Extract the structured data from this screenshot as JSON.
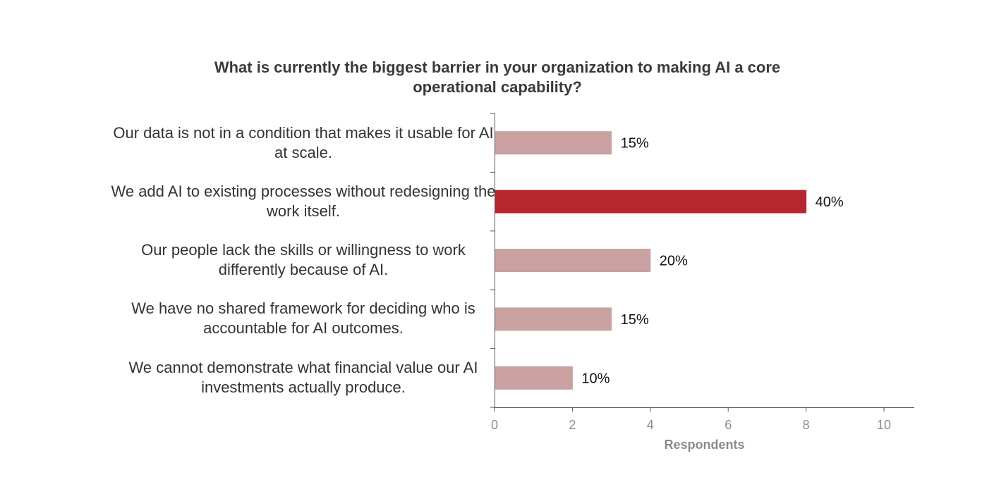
{
  "chart_data": {
    "type": "bar",
    "orientation": "horizontal",
    "title_lines": [
      "What is currently the biggest barrier in your organization to making AI a core",
      "operational capability?"
    ],
    "categories": [
      {
        "lines": [
          "Our data is not in a condition that makes it usable for AI",
          "at scale."
        ]
      },
      {
        "lines": [
          "We add AI to existing processes without redesigning the",
          "work itself."
        ]
      },
      {
        "lines": [
          "Our people lack the skills or willingness to work",
          "differently because of AI."
        ]
      },
      {
        "lines": [
          "We have no shared framework for deciding who is",
          "accountable for AI outcomes."
        ]
      },
      {
        "lines": [
          "We cannot demonstrate what financial value our AI",
          "investments actually produce."
        ]
      }
    ],
    "values": [
      3,
      8,
      4,
      3,
      2
    ],
    "data_labels": [
      "15%",
      "40%",
      "20%",
      "15%",
      "10%"
    ],
    "xlabel": "Respondents",
    "xlim": [
      0,
      10.8
    ],
    "xticks": [
      0,
      2,
      4,
      6,
      8,
      10
    ],
    "highlight_index": 1,
    "colors": {
      "bar": "#c9a1a1",
      "highlight": "#b5262f",
      "axis": "#555555",
      "tick_label": "#8c8c8c",
      "axis_title": "#8c8c8c",
      "data_label": "#111111"
    },
    "grid": false,
    "legend": "none"
  }
}
